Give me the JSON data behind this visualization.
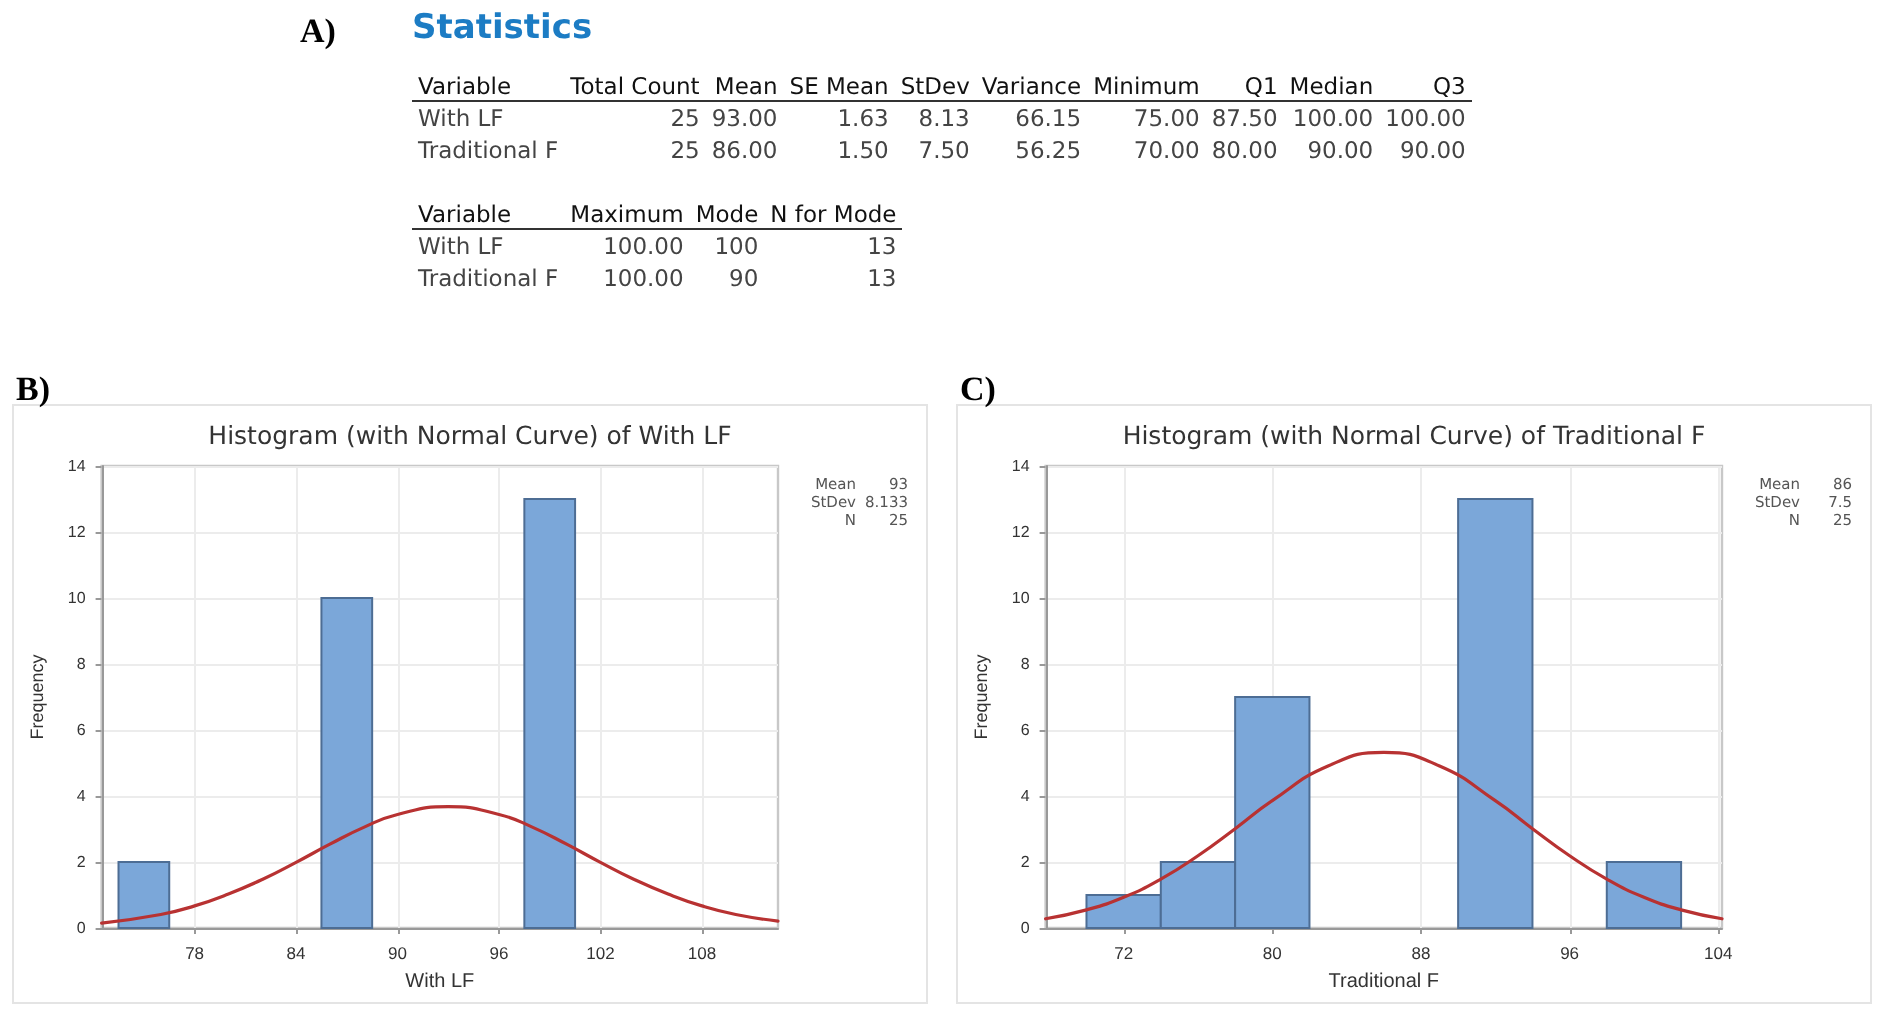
{
  "chart_data": [
    {
      "type": "other",
      "title": "Statistics",
      "annotations": [
        "A)",
        "Variable",
        "Total Count",
        "Mean",
        "SE Mean",
        "StDev",
        "Variance",
        "Minimum",
        "Q1",
        "Median",
        "Q3",
        "With LF",
        "25",
        "93.00",
        "1.63",
        "8.13",
        "66.15",
        "75.00",
        "87.50",
        "100.00",
        "100.00",
        "Traditional F",
        "25",
        "86.00",
        "1.50",
        "7.50",
        "56.25",
        "70.00",
        "80.00",
        "90.00",
        "90.00",
        "Variable",
        "Maximum",
        "Mode",
        "N for Mode",
        "With LF",
        "100.00",
        "100",
        "13",
        "Traditional F",
        "100.00",
        "90",
        "13"
      ]
    },
    {
      "type": "histogram",
      "title": "Histogram (with Normal Curve) of With LF",
      "xlabel": "With LF",
      "ylabel": "Frequency",
      "annotations": [
        "B)",
        "Mean",
        "93",
        "StDev",
        "8.133",
        "N",
        "25"
      ],
      "series": [
        {
          "type": "histogram",
          "color": "#7ba7d9",
          "bins": [
            73.5,
            76.5,
            79.5,
            82.5,
            85.5,
            88.5,
            91.5,
            94.5,
            97.5,
            100.5
          ],
          "values": [
            2,
            0,
            0,
            0,
            10,
            0,
            0,
            0,
            13
          ]
        },
        {
          "type": "line",
          "color": "#b83232",
          "x": [
            72.5,
            76,
            78,
            80,
            82,
            84,
            86,
            88,
            90,
            93,
            96,
            98,
            100,
            102,
            104,
            106,
            108,
            110,
            112.5
          ],
          "values": [
            0.15,
            0.41,
            0.67,
            1.03,
            1.47,
            1.99,
            2.54,
            3.05,
            3.44,
            3.68,
            3.44,
            3.05,
            2.54,
            1.99,
            1.47,
            1.03,
            0.67,
            0.41,
            0.21
          ]
        }
      ],
      "xlim": [
        72.5,
        112.5
      ],
      "xticks": [
        78,
        84,
        90,
        96,
        102,
        108
      ],
      "ylim": [
        0,
        14
      ],
      "yticks": [
        0,
        2,
        4,
        6,
        8,
        10,
        12,
        14
      ],
      "grid": true,
      "marker": "none",
      "line_style": "solid"
    },
    {
      "type": "histogram",
      "title": "Histogram (with Normal Curve) of Traditional F",
      "xlabel": "Traditional F",
      "ylabel": "Frequency",
      "annotations": [
        "C)",
        "Mean",
        "86",
        "StDev",
        "7.5",
        "N",
        "25"
      ],
      "series": [
        {
          "type": "histogram",
          "color": "#7ba7d9",
          "bins": [
            70,
            74,
            78,
            82,
            86,
            90,
            94,
            98,
            102
          ],
          "values": [
            1,
            2,
            7,
            0,
            0,
            13,
            0,
            2
          ]
        },
        {
          "type": "line",
          "color": "#b83232",
          "x": [
            67.8,
            70,
            72,
            74,
            76,
            78,
            80,
            83,
            86,
            89,
            92,
            94,
            96,
            98,
            100,
            102,
            104.2
          ],
          "values": [
            0.28,
            0.55,
            0.93,
            1.48,
            2.19,
            3.01,
            3.86,
            4.91,
            5.32,
            4.91,
            3.86,
            3.01,
            2.19,
            1.48,
            0.93,
            0.55,
            0.28
          ]
        }
      ],
      "xlim": [
        67.8,
        104.2
      ],
      "xticks": [
        72,
        80,
        88,
        96,
        104
      ],
      "ylim": [
        0,
        14
      ],
      "yticks": [
        0,
        2,
        4,
        6,
        8,
        10,
        12,
        14
      ],
      "grid": true,
      "marker": "none",
      "line_style": "solid"
    }
  ]
}
